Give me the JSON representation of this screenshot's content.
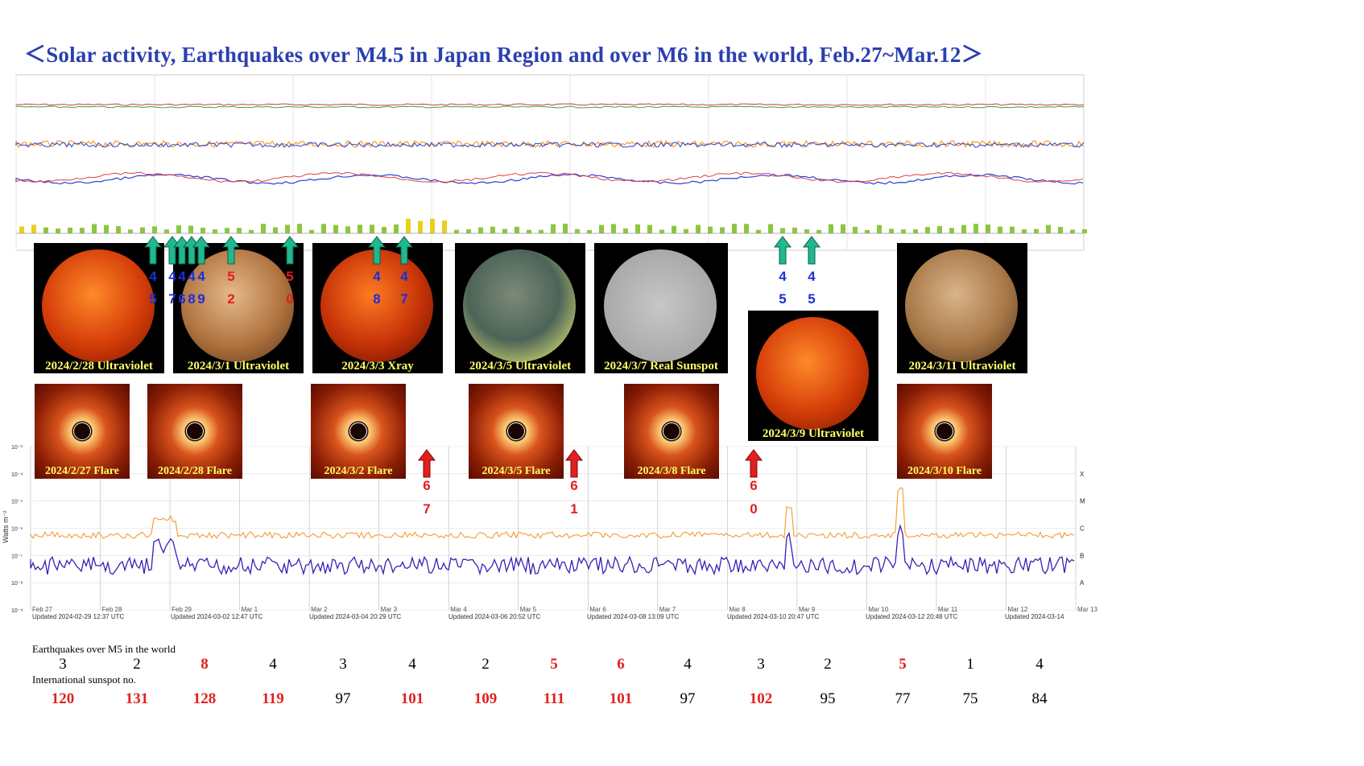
{
  "title": "＜Solar activity, Earthquakes over M4.5 in Japan Region and over M6 in the world, Feb.27~Mar.12＞",
  "images": {
    "sun1": "2024/2/28 Ultraviolet",
    "sun2": "2024/3/1 Ultraviolet",
    "sun3": "2024/3/3 Xray",
    "sun4": "2024/3/5 Ultraviolet",
    "sun5": "2024/3/7 Real Sunspot",
    "sun6": "2024/3/9 Ultraviolet",
    "sun7": "2024/3/11 Ultraviolet",
    "cme1": "2024/2/27 Flare",
    "cme2": "2024/2/28 Flare",
    "cme3": "2024/3/2 Flare",
    "cme4": "2024/3/5 Flare",
    "cme5": "2024/3/8 Flare",
    "cme6": "2024/3/10 Flare"
  },
  "quakes_japan": [
    {
      "d1": "4",
      "d2": "5",
      "color": "blue"
    },
    {
      "d1": "4",
      "d2": "7",
      "color": "blue"
    },
    {
      "d1": "4",
      "d2": "6",
      "color": "blue"
    },
    {
      "d1": "4",
      "d2": "8",
      "color": "blue"
    },
    {
      "d1": "4",
      "d2": "9",
      "color": "blue"
    },
    {
      "d1": "5",
      "d2": "2",
      "color": "red"
    },
    {
      "d1": "5",
      "d2": "0",
      "color": "red"
    },
    {
      "d1": "4",
      "d2": "8",
      "color": "blue"
    },
    {
      "d1": "4",
      "d2": "7",
      "color": "blue"
    },
    {
      "d1": "4",
      "d2": "5",
      "color": "blue"
    },
    {
      "d1": "4",
      "d2": "5",
      "color": "blue"
    }
  ],
  "quakes_world": [
    {
      "d1": "6",
      "d2": "7"
    },
    {
      "d1": "6",
      "d2": "1"
    },
    {
      "d1": "6",
      "d2": "0"
    }
  ],
  "xray": {
    "ylabel": "Watts m⁻²",
    "yticks": [
      "10⁻³",
      "10⁻⁴",
      "10⁻⁵",
      "10⁻⁶",
      "10⁻⁷",
      "10⁻⁸",
      "10⁻⁹"
    ],
    "bands": [
      "X",
      "M",
      "C",
      "B",
      "A"
    ],
    "xticks": [
      "Feb 27",
      "Feb 28",
      "Feb 29",
      "Mar 1",
      "Mar 2",
      "Mar 3",
      "Mar 4",
      "Mar 5",
      "Mar 6",
      "Mar 7",
      "Mar 8",
      "Mar 9",
      "Mar 10",
      "Mar 11",
      "Mar 12",
      "Mar 13"
    ],
    "updated": [
      "Updated 2024-02-29 12:37 UTC",
      "Updated 2024-03-02 12:47 UTC",
      "Updated 2024-03-04 20:29 UTC",
      "Updated 2024-03-06 20:52 UTC",
      "Updated 2024-03-08 13:09 UTC",
      "Updated 2024-03-10 20:47 UTC",
      "Updated 2024-03-12 20:48 UTC",
      "Updated 2024-03-14"
    ]
  },
  "counts": {
    "world_label": "Earthquakes over M5 in the world",
    "world": [
      {
        "v": "3",
        "red": false
      },
      {
        "v": "2",
        "red": false
      },
      {
        "v": "8",
        "red": true
      },
      {
        "v": "4",
        "red": false
      },
      {
        "v": "3",
        "red": false
      },
      {
        "v": "4",
        "red": false
      },
      {
        "v": "2",
        "red": false
      },
      {
        "v": "5",
        "red": true
      },
      {
        "v": "6",
        "red": true
      },
      {
        "v": "4",
        "red": false
      },
      {
        "v": "3",
        "red": false
      },
      {
        "v": "2",
        "red": false
      },
      {
        "v": "5",
        "red": true
      },
      {
        "v": "1",
        "red": false
      },
      {
        "v": "4",
        "red": false
      }
    ],
    "sunspot_label": "International sunspot no.",
    "sunspot": [
      {
        "v": "120",
        "red": true
      },
      {
        "v": "131",
        "red": true
      },
      {
        "v": "128",
        "red": true
      },
      {
        "v": "119",
        "red": true
      },
      {
        "v": "97",
        "red": false
      },
      {
        "v": "101",
        "red": true
      },
      {
        "v": "109",
        "red": true
      },
      {
        "v": "111",
        "red": true
      },
      {
        "v": "101",
        "red": true
      },
      {
        "v": "97",
        "red": false
      },
      {
        "v": "102",
        "red": true
      },
      {
        "v": "95",
        "red": false
      },
      {
        "v": "77",
        "red": false
      },
      {
        "v": "75",
        "red": false
      },
      {
        "v": "84",
        "red": false
      }
    ]
  },
  "colors": {
    "title": "#2b3fb0",
    "orange": "#f39c2e",
    "purple": "#3b1fb5",
    "green": "#20b890",
    "red": "#e02020",
    "blue": "#1a2fd6"
  }
}
